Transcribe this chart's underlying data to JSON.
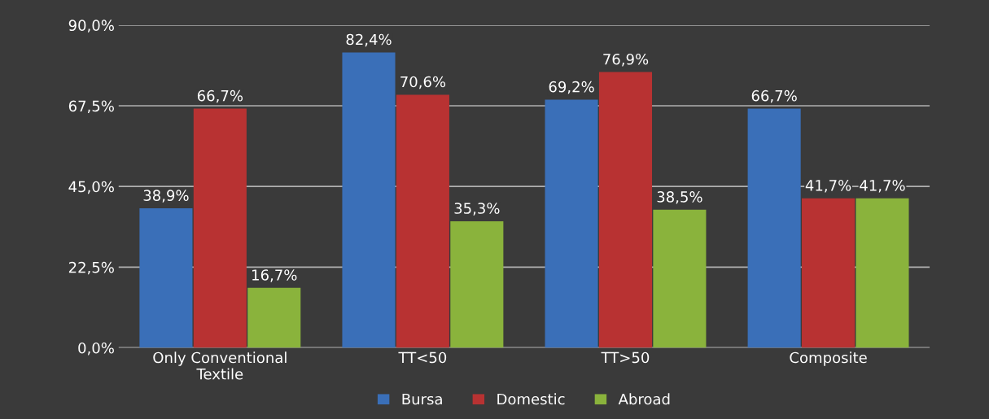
{
  "chart_data": {
    "type": "bar",
    "categories": [
      "Only Conventional\nTextile",
      "TT<50",
      "TT>50",
      "Composite"
    ],
    "series": [
      {
        "name": "Bursa",
        "color": "#3a6fb8",
        "values": [
          38.9,
          82.4,
          69.2,
          66.7
        ],
        "value_labels": [
          "38,9%",
          "82,4%",
          "69,2%",
          "66,7%"
        ]
      },
      {
        "name": "Domestic",
        "color": "#b83232",
        "values": [
          66.7,
          70.6,
          76.9,
          41.7
        ],
        "value_labels": [
          "66,7%",
          "70,6%",
          "76,9%",
          "41,7%"
        ]
      },
      {
        "name": "Abroad",
        "color": "#8ab33c",
        "values": [
          16.7,
          35.3,
          38.5,
          41.7
        ],
        "value_labels": [
          "16,7%",
          "35,3%",
          "38,5%",
          "41,7%"
        ]
      }
    ],
    "ylim": [
      0,
      90
    ],
    "yticks": [
      {
        "value": 0,
        "label": "0,0%"
      },
      {
        "value": 22.5,
        "label": "22,5%"
      },
      {
        "value": 45,
        "label": "45,0%"
      },
      {
        "value": 67.5,
        "label": "67,5%"
      },
      {
        "value": 90,
        "label": "90,0%"
      }
    ],
    "grid": "y",
    "legend": "bottom"
  }
}
